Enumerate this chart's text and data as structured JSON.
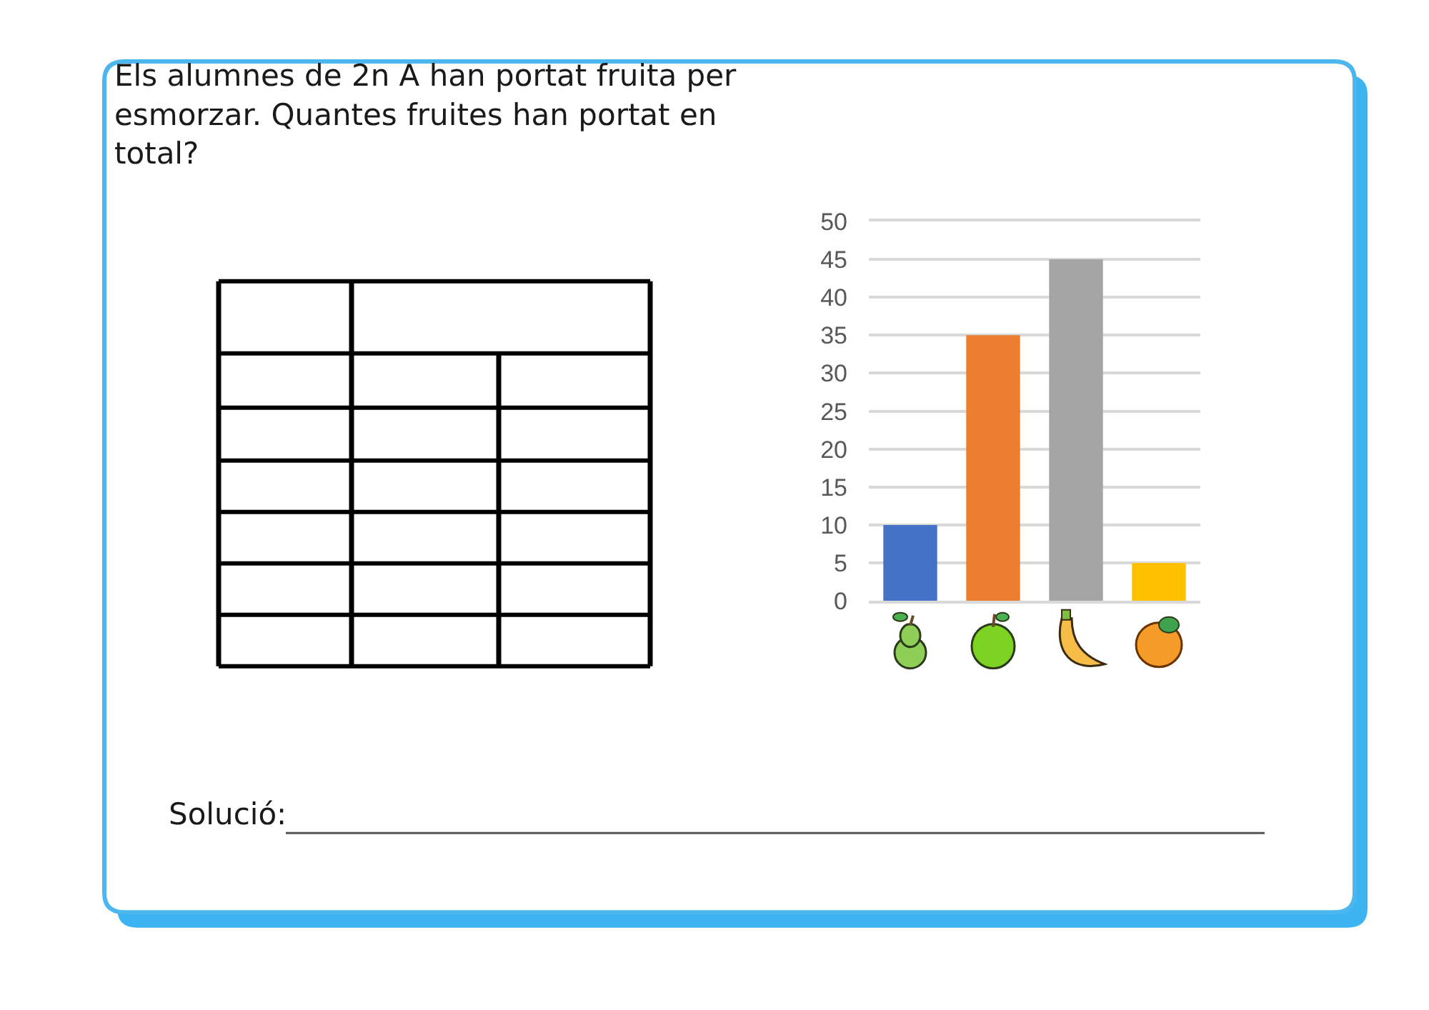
{
  "chart_data": {
    "type": "bar",
    "title": "Els alumnes de 2n A han portat fruita per esmorzar. Quantes fruites han portat en total?",
    "categories": [
      null,
      null,
      null,
      null
    ],
    "values": [
      10,
      35,
      45,
      5
    ],
    "colors": [
      "#4472c4",
      "#ed7d31",
      "#a5a5a5",
      "#ffc000"
    ],
    "ylim": [
      0,
      50
    ],
    "yticks": [
      0,
      5,
      10,
      15,
      20,
      25,
      30,
      35,
      40,
      45,
      50
    ],
    "grid": "y",
    "tick_labels": "y",
    "annotations": [
      "Solució:"
    ]
  }
}
